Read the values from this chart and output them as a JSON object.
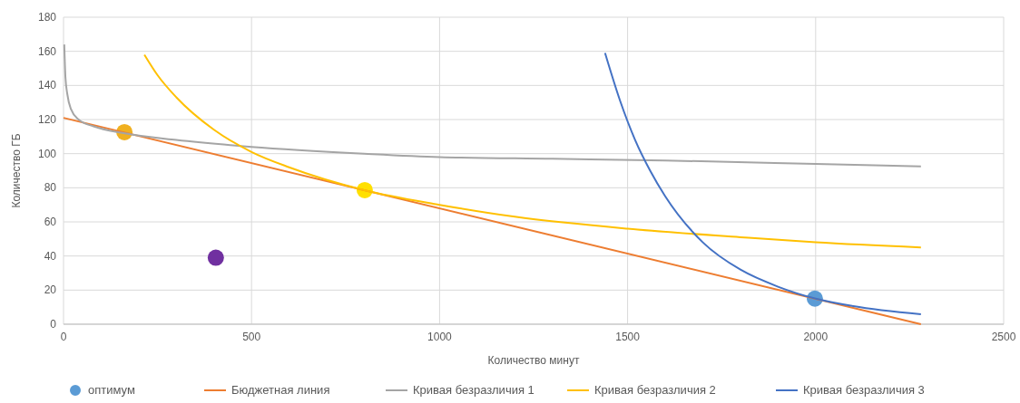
{
  "chart_data": {
    "type": "line",
    "xlabel": "Количество минут",
    "ylabel": "Количество ГБ",
    "xlim": [
      0,
      2500
    ],
    "ylim": [
      0,
      180
    ],
    "xticks": [
      0,
      500,
      1000,
      1500,
      2000,
      2500
    ],
    "yticks": [
      0,
      20,
      40,
      60,
      80,
      100,
      120,
      140,
      160,
      180
    ],
    "grid": true,
    "legend": "bottom",
    "line_style": "solid",
    "series": [
      {
        "name": "оптимум",
        "type": "scatter",
        "marker": "circle",
        "color": "#5b9bd5",
        "colors": [
          "#f0b020",
          "#ffe000",
          "#7030a0",
          "#5b9bd5"
        ],
        "x": [
          162,
          801,
          405,
          1998
        ],
        "values": [
          112.6,
          78.6,
          39,
          15
        ]
      },
      {
        "name": "Бюджетная линия",
        "color": "#ed7d31",
        "x": [
          0,
          2280
        ],
        "values": [
          121,
          0
        ]
      },
      {
        "name": "Кривая безразличия 1",
        "color": "#a5a5a5",
        "x": [
          2,
          5,
          10,
          20,
          40,
          80,
          160,
          300,
          500,
          800,
          1000,
          1300,
          1600,
          2000,
          2280
        ],
        "values": [
          164,
          145,
          135,
          126,
          120,
          116,
          112,
          108,
          104,
          100,
          98,
          97,
          96,
          94,
          92.5
        ]
      },
      {
        "name": "Кривая безразличия 2",
        "color": "#ffc000",
        "x": [
          215,
          250,
          300,
          400,
          500,
          600,
          800,
          1000,
          1200,
          1500,
          1800,
          2000,
          2280
        ],
        "values": [
          158,
          146,
          133,
          114,
          101,
          92,
          78.6,
          70,
          63,
          56,
          51,
          48,
          45
        ]
      },
      {
        "name": "Кривая безразличия 3",
        "color": "#4472c4",
        "x": [
          1440,
          1480,
          1520,
          1560,
          1600,
          1700,
          1800,
          1900,
          2000,
          2100,
          2280
        ],
        "values": [
          159,
          131,
          108,
          90,
          75,
          48,
          32,
          22,
          15,
          10.6,
          5.8
        ]
      }
    ]
  }
}
